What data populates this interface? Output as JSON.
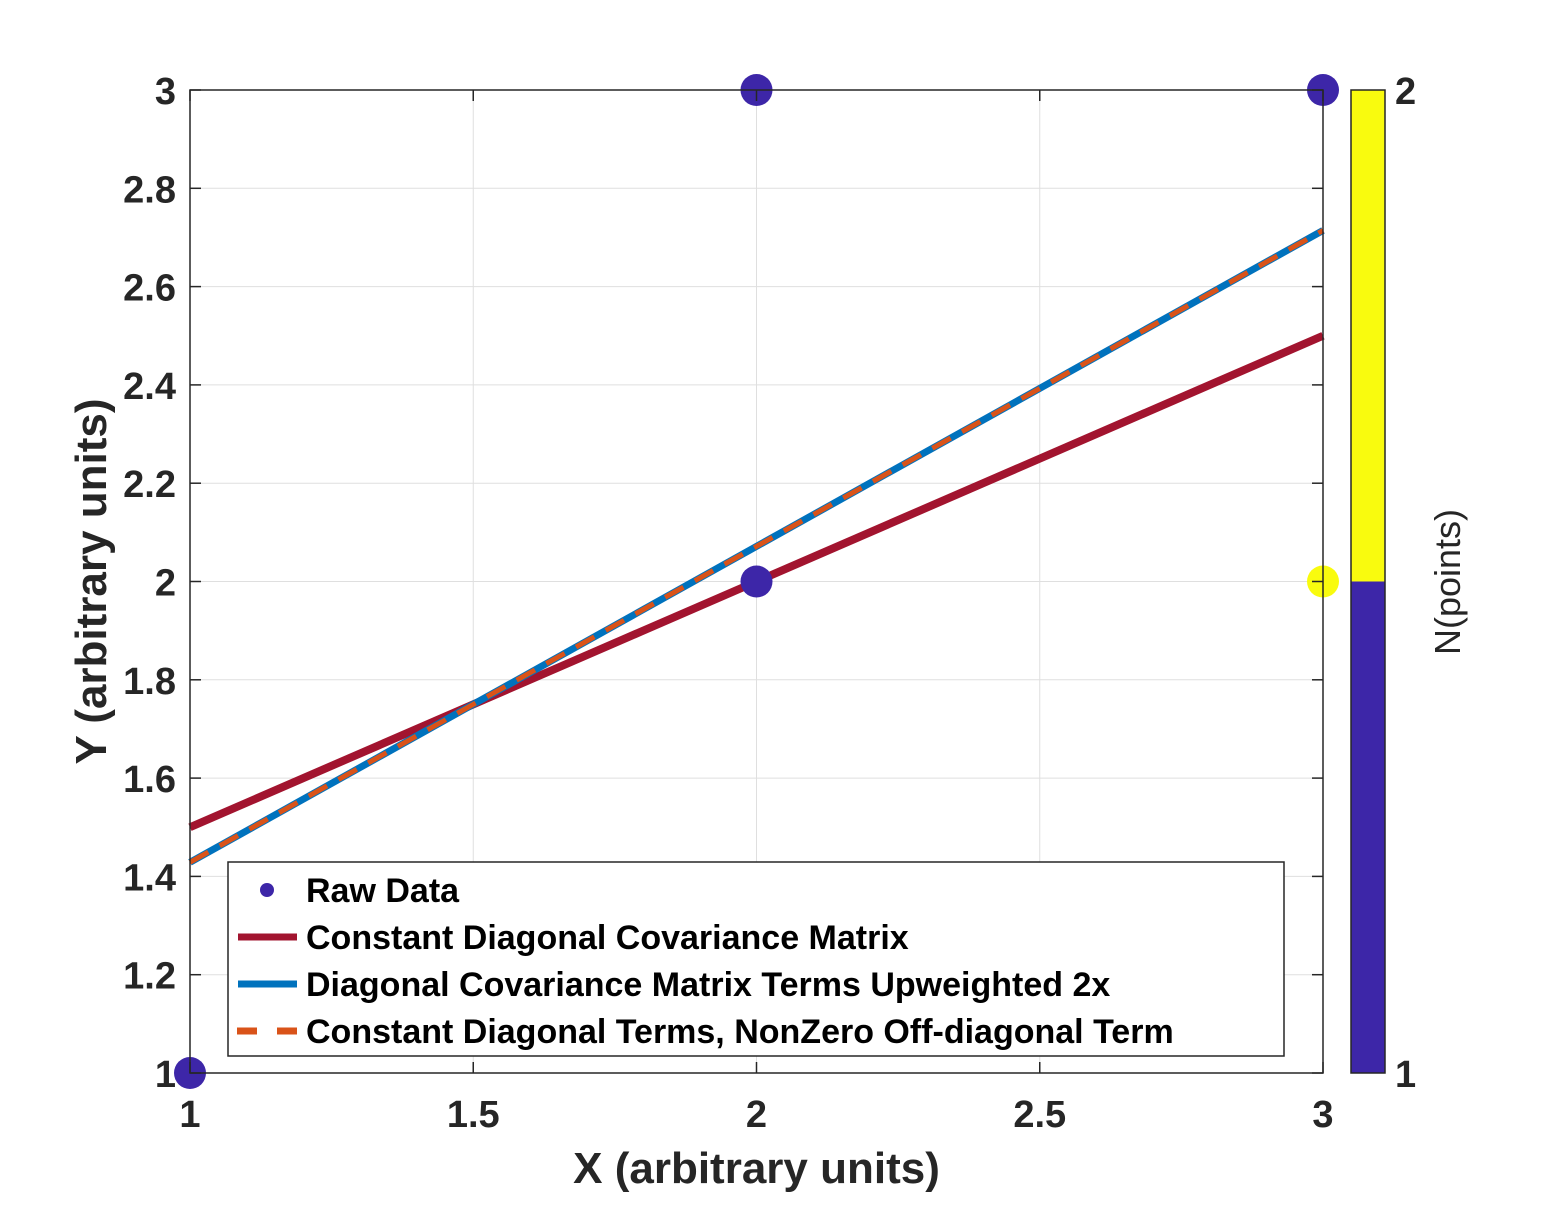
{
  "chart_data": {
    "type": "line",
    "title": "",
    "xlabel": "X (arbitrary units)",
    "ylabel": "Y (arbitrary units)",
    "xlim": [
      1,
      3
    ],
    "ylim": [
      1,
      3
    ],
    "xticks": [
      1,
      1.5,
      2,
      2.5,
      3
    ],
    "xtick_labels": [
      "1",
      "1.5",
      "2",
      "2.5",
      "3"
    ],
    "yticks": [
      1,
      1.2,
      1.4,
      1.6,
      1.8,
      2,
      2.2,
      2.4,
      2.6,
      2.8,
      3
    ],
    "ytick_labels": [
      "1",
      "1.2",
      "1.4",
      "1.6",
      "1.8",
      "2",
      "2.2",
      "2.4",
      "2.6",
      "2.8",
      "3"
    ],
    "grid": true,
    "legend_position": "bottom",
    "series": [
      {
        "name": "Raw Data",
        "kind": "scatter",
        "color": "#3d26a8",
        "points": [
          {
            "x": 1,
            "y": 1,
            "n": 1
          },
          {
            "x": 2,
            "y": 2,
            "n": 1
          },
          {
            "x": 2,
            "y": 3,
            "n": 1
          },
          {
            "x": 3,
            "y": 2,
            "n": 2
          },
          {
            "x": 3,
            "y": 3,
            "n": 1
          }
        ]
      },
      {
        "name": "Constant Diagonal Covariance Matrix",
        "kind": "line",
        "style": "solid",
        "color": "#a2142f",
        "x": [
          1,
          3
        ],
        "y": [
          1.5,
          2.5
        ]
      },
      {
        "name": "Diagonal Covariance Matrix Terms Upweighted 2x",
        "kind": "line",
        "style": "solid",
        "color": "#0072bd",
        "x": [
          1,
          3
        ],
        "y": [
          1.4286,
          2.7143
        ]
      },
      {
        "name": "Constant Diagonal Terms, NonZero Off-diagonal Term",
        "kind": "line",
        "style": "dashed",
        "color": "#d95319",
        "x": [
          1,
          3
        ],
        "y": [
          1.4286,
          2.7143
        ]
      }
    ],
    "colorbar": {
      "label": "N(points)",
      "range": [
        1,
        2
      ],
      "tick_labels": [
        "1",
        "2"
      ],
      "colors": [
        "#3d26a8",
        "#f9fb0e"
      ]
    }
  }
}
